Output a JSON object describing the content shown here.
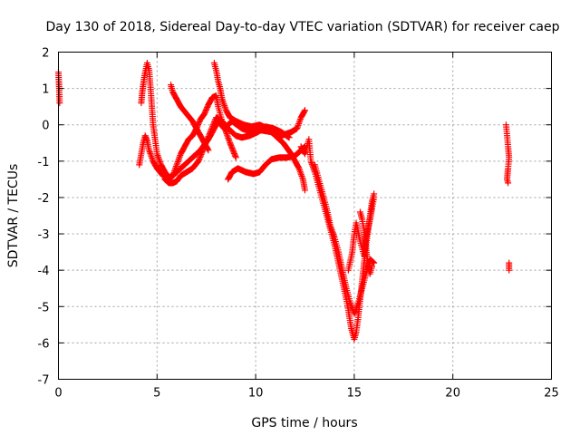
{
  "chart_data": {
    "type": "scatter",
    "title": "Day 130 of 2018, Sidereal Day-to-day VTEC variation (SDTVAR) for receiver caep",
    "xlabel": "GPS time / hours",
    "ylabel": "SDTVAR / TECUs",
    "xlim": [
      0,
      25
    ],
    "ylim": [
      -7,
      2
    ],
    "x_ticks": [
      0,
      5,
      10,
      15,
      20,
      25
    ],
    "y_ticks": [
      -7,
      -6,
      -5,
      -4,
      -3,
      -2,
      -1,
      0,
      1,
      2
    ],
    "grid": true,
    "marker": "plus",
    "color": "#ff0000",
    "series": [
      {
        "tracks": [
          [
            [
              0.0,
              1.45
            ],
            [
              0.02,
              1.2
            ],
            [
              0.04,
              1.0
            ],
            [
              0.06,
              0.6
            ]
          ],
          [
            [
              4.1,
              -1.1
            ],
            [
              4.2,
              -0.8
            ],
            [
              4.3,
              -0.5
            ],
            [
              4.4,
              -0.3
            ],
            [
              4.5,
              -0.45
            ],
            [
              4.6,
              -0.7
            ],
            [
              4.8,
              -1.0
            ],
            [
              5.0,
              -1.2
            ],
            [
              5.3,
              -1.4
            ],
            [
              5.6,
              -1.5
            ],
            [
              6.0,
              -1.3
            ],
            [
              6.4,
              -1.1
            ],
            [
              6.8,
              -0.9
            ],
            [
              7.2,
              -0.7
            ],
            [
              7.6,
              -0.4
            ],
            [
              7.9,
              -0.1
            ],
            [
              8.1,
              0.1
            ],
            [
              8.4,
              -0.1
            ],
            [
              8.8,
              0.1
            ],
            [
              9.3,
              -0.1
            ],
            [
              9.8,
              -0.2
            ],
            [
              10.3,
              -0.15
            ],
            [
              10.8,
              -0.2
            ],
            [
              11.3,
              -0.3
            ],
            [
              11.8,
              -0.2
            ],
            [
              12.1,
              -0.1
            ],
            [
              12.3,
              0.2
            ],
            [
              12.5,
              0.4
            ]
          ],
          [
            [
              4.2,
              0.6
            ],
            [
              4.25,
              0.9
            ],
            [
              4.3,
              1.1
            ],
            [
              4.35,
              1.3
            ],
            [
              4.4,
              1.45
            ],
            [
              4.5,
              1.7
            ],
            [
              4.6,
              1.5
            ],
            [
              4.7,
              0.8
            ],
            [
              4.8,
              0.0
            ],
            [
              4.9,
              -0.4
            ],
            [
              5.0,
              -0.8
            ],
            [
              5.2,
              -1.1
            ],
            [
              5.4,
              -1.3
            ],
            [
              5.6,
              -1.45
            ],
            [
              5.8,
              -1.4
            ],
            [
              6.0,
              -1.1
            ],
            [
              6.2,
              -0.8
            ],
            [
              6.4,
              -0.6
            ],
            [
              6.6,
              -0.4
            ],
            [
              6.8,
              -0.3
            ],
            [
              7.0,
              -0.1
            ],
            [
              7.2,
              0.15
            ],
            [
              7.4,
              0.3
            ],
            [
              7.6,
              0.55
            ],
            [
              7.8,
              0.75
            ],
            [
              8.0,
              0.8
            ],
            [
              8.1,
              0.5
            ],
            [
              8.3,
              0.1
            ],
            [
              8.5,
              -0.2
            ],
            [
              8.7,
              -0.5
            ],
            [
              9.0,
              -0.9
            ]
          ],
          [
            [
              5.4,
              -1.5
            ],
            [
              5.6,
              -1.6
            ],
            [
              5.8,
              -1.6
            ],
            [
              6.0,
              -1.55
            ],
            [
              6.2,
              -1.4
            ],
            [
              6.5,
              -1.3
            ],
            [
              6.8,
              -1.2
            ],
            [
              7.1,
              -1.0
            ],
            [
              7.4,
              -0.6
            ],
            [
              7.7,
              -0.2
            ],
            [
              8.0,
              0.2
            ],
            [
              8.3,
              0.1
            ],
            [
              8.6,
              -0.1
            ],
            [
              9.0,
              -0.3
            ],
            [
              9.3,
              -0.35
            ],
            [
              9.7,
              -0.3
            ],
            [
              10.1,
              -0.2
            ],
            [
              10.5,
              -0.05
            ],
            [
              10.9,
              -0.1
            ],
            [
              11.3,
              -0.2
            ],
            [
              11.7,
              -0.35
            ]
          ],
          [
            [
              5.7,
              1.1
            ],
            [
              5.8,
              0.9
            ],
            [
              6.0,
              0.7
            ],
            [
              6.2,
              0.5
            ],
            [
              6.5,
              0.3
            ],
            [
              6.8,
              0.1
            ],
            [
              7.0,
              -0.1
            ],
            [
              7.2,
              -0.3
            ],
            [
              7.4,
              -0.5
            ],
            [
              7.6,
              -0.7
            ]
          ],
          [
            [
              7.9,
              1.7
            ],
            [
              8.0,
              1.5
            ],
            [
              8.1,
              1.2
            ],
            [
              8.2,
              1.0
            ],
            [
              8.3,
              0.7
            ],
            [
              8.5,
              0.4
            ],
            [
              8.7,
              0.2
            ],
            [
              9.0,
              0.1
            ],
            [
              9.4,
              0.0
            ],
            [
              9.8,
              -0.05
            ],
            [
              10.2,
              0.0
            ],
            [
              10.6,
              -0.1
            ],
            [
              11.0,
              -0.3
            ],
            [
              11.4,
              -0.5
            ],
            [
              11.8,
              -0.8
            ],
            [
              12.2,
              -1.2
            ],
            [
              12.4,
              -1.5
            ],
            [
              12.5,
              -1.8
            ]
          ],
          [
            [
              8.6,
              -1.5
            ],
            [
              8.8,
              -1.3
            ],
            [
              9.1,
              -1.2
            ],
            [
              9.5,
              -1.3
            ],
            [
              9.9,
              -1.35
            ],
            [
              10.2,
              -1.3
            ],
            [
              10.5,
              -1.1
            ],
            [
              10.8,
              -0.95
            ],
            [
              11.2,
              -0.9
            ],
            [
              11.6,
              -0.9
            ],
            [
              12.0,
              -0.85
            ],
            [
              12.3,
              -0.7
            ],
            [
              12.5,
              -0.6
            ]
          ],
          [
            [
              12.3,
              -0.6
            ],
            [
              12.5,
              -0.8
            ],
            [
              12.7,
              -0.4
            ],
            [
              12.8,
              -1.0
            ],
            [
              13.0,
              -1.3
            ],
            [
              13.2,
              -1.7
            ],
            [
              13.4,
              -2.1
            ],
            [
              13.6,
              -2.5
            ],
            [
              13.8,
              -2.9
            ],
            [
              14.0,
              -3.3
            ],
            [
              14.2,
              -3.8
            ],
            [
              14.4,
              -4.3
            ],
            [
              14.6,
              -4.8
            ],
            [
              14.7,
              -5.1
            ],
            [
              14.85,
              -5.6
            ],
            [
              15.0,
              -5.9
            ],
            [
              15.1,
              -5.7
            ],
            [
              15.2,
              -5.3
            ],
            [
              15.3,
              -4.8
            ],
            [
              15.4,
              -4.3
            ],
            [
              15.5,
              -3.8
            ],
            [
              15.6,
              -3.3
            ],
            [
              15.7,
              -2.9
            ],
            [
              15.8,
              -2.5
            ],
            [
              15.9,
              -2.1
            ],
            [
              16.0,
              -1.9
            ]
          ],
          [
            [
              13.0,
              -1.1
            ],
            [
              13.2,
              -1.5
            ],
            [
              13.4,
              -1.9
            ],
            [
              13.6,
              -2.3
            ],
            [
              13.8,
              -2.8
            ],
            [
              14.0,
              -3.1
            ],
            [
              14.2,
              -3.5
            ],
            [
              14.4,
              -4.0
            ],
            [
              14.6,
              -4.5
            ],
            [
              14.8,
              -4.9
            ],
            [
              15.0,
              -5.2
            ],
            [
              15.2,
              -4.9
            ],
            [
              15.4,
              -4.5
            ],
            [
              15.6,
              -4.1
            ],
            [
              15.8,
              -3.7
            ],
            [
              16.0,
              -3.8
            ]
          ],
          [
            [
              14.7,
              -4.0
            ],
            [
              14.9,
              -3.5
            ],
            [
              15.0,
              -3.0
            ],
            [
              15.1,
              -2.7
            ],
            [
              15.3,
              -3.2
            ],
            [
              15.5,
              -3.6
            ],
            [
              15.6,
              -3.1
            ],
            [
              15.8,
              -2.6
            ],
            [
              15.9,
              -2.3
            ],
            [
              16.0,
              -2.0
            ]
          ],
          [
            [
              15.3,
              -2.4
            ],
            [
              15.4,
              -2.6
            ],
            [
              15.5,
              -2.9
            ],
            [
              15.6,
              -3.4
            ],
            [
              15.7,
              -3.9
            ],
            [
              15.8,
              -4.1
            ],
            [
              15.9,
              -3.9
            ]
          ],
          [
            [
              22.7,
              0.0
            ],
            [
              22.75,
              -0.3
            ],
            [
              22.8,
              -0.6
            ],
            [
              22.85,
              -0.9
            ],
            [
              22.8,
              -1.2
            ],
            [
              22.75,
              -1.5
            ],
            [
              22.8,
              -1.6
            ]
          ],
          [
            [
              22.85,
              -3.8
            ],
            [
              22.85,
              -4.0
            ]
          ]
        ]
      }
    ]
  }
}
